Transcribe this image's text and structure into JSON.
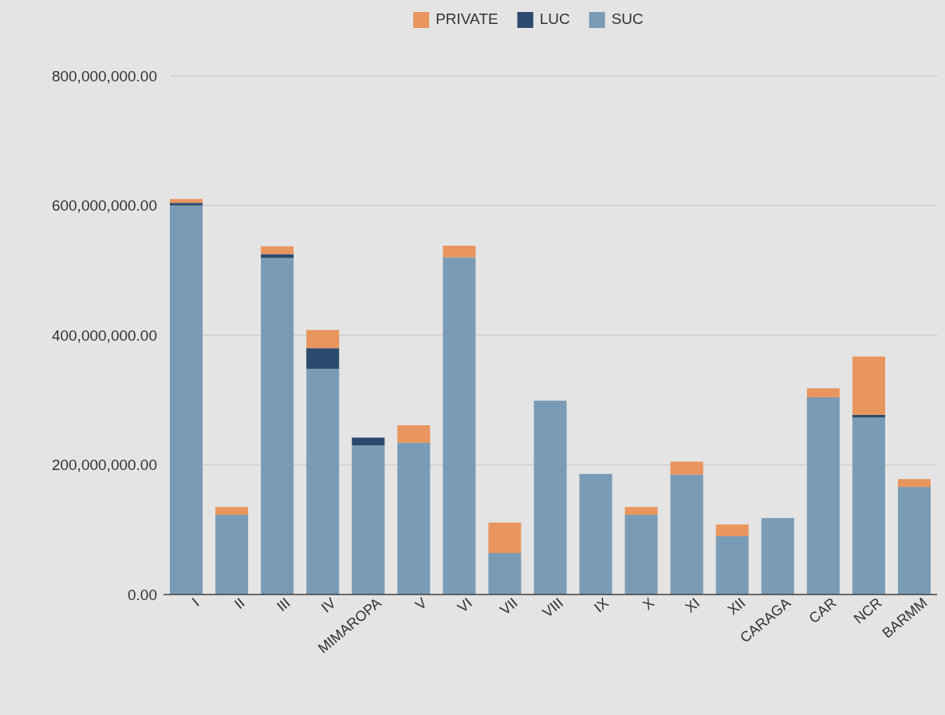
{
  "chart_data": {
    "type": "bar",
    "stacked": true,
    "categories": [
      "I",
      "II",
      "III",
      "IV",
      "MIMAROPA",
      "V",
      "VI",
      "VII",
      "VIII",
      "IX",
      "X",
      "XI",
      "XII",
      "CARAGA",
      "CAR",
      "NCR",
      "BARMM"
    ],
    "series": [
      {
        "name": "SUC",
        "color": "#7a9bb5",
        "values": [
          600000000,
          123000000,
          519000000,
          348000000,
          230000000,
          234000000,
          520000000,
          64000000,
          299000000,
          186000000,
          123000000,
          185000000,
          90000000,
          118000000,
          304000000,
          273000000,
          166000000
        ]
      },
      {
        "name": "LUC",
        "color": "#2c4a6e",
        "values": [
          4000000,
          0,
          6000000,
          32000000,
          12000000,
          0,
          0,
          0,
          0,
          0,
          0,
          0,
          0,
          0,
          0,
          4000000,
          0
        ]
      },
      {
        "name": "PRIVATE",
        "color": "#e8955e",
        "values": [
          6000000,
          12000000,
          12000000,
          28000000,
          0,
          27000000,
          18000000,
          47000000,
          0,
          0,
          12000000,
          20000000,
          18000000,
          0,
          14000000,
          90000000,
          12000000
        ]
      }
    ],
    "ylim": [
      0,
      800000000
    ],
    "yticks": [
      {
        "value": 0,
        "label": "0.00"
      },
      {
        "value": 200000000,
        "label": "200,000,000.00"
      },
      {
        "value": 400000000,
        "label": "400,000,000.00"
      },
      {
        "value": 600000000,
        "label": "600,000,000.00"
      },
      {
        "value": 800000000,
        "label": "800,000,000.00"
      }
    ],
    "grid": "y",
    "legend": "top"
  }
}
